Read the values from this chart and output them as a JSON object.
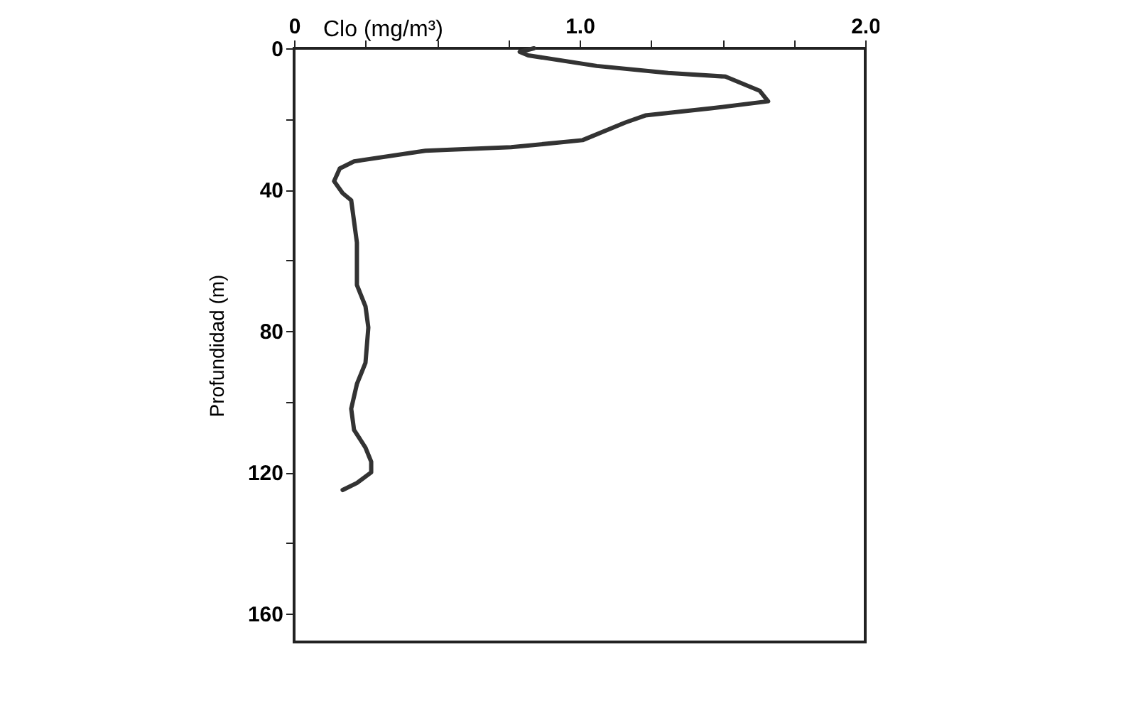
{
  "chart_data": {
    "type": "line",
    "xlabel": "Clo (mg/m³)",
    "ylabel": "Profundidad (m)",
    "x": [
      0.84,
      0.79,
      0.82,
      1.06,
      1.31,
      1.51,
      1.63,
      1.66,
      1.46,
      1.23,
      1.16,
      1.01,
      0.76,
      0.46,
      0.21,
      0.16,
      0.14,
      0.17,
      0.2,
      0.22,
      0.22,
      0.25,
      0.26,
      0.25,
      0.22,
      0.2,
      0.21,
      0.25,
      0.27,
      0.27,
      0.22,
      0.17
    ],
    "series": [
      {
        "color": "#333333",
        "values": [
          0,
          1,
          2,
          5,
          7,
          8,
          12,
          15,
          17,
          19,
          21,
          26,
          28,
          29,
          32,
          34,
          37.6,
          41,
          43,
          55,
          67,
          73,
          79,
          89,
          95,
          102,
          108,
          113,
          117,
          120,
          123,
          125
        ]
      }
    ],
    "xlim": [
      0,
      2.0
    ],
    "ylim": [
      168,
      0
    ],
    "xticks": [
      0,
      {
        "value": 0.25,
        "label": null
      },
      {
        "value": 0.5,
        "label": null
      },
      {
        "value": 0.75,
        "label": null
      },
      {
        "value": 1.0,
        "label": "1.0"
      },
      {
        "value": 1.25,
        "label": null
      },
      {
        "value": 1.5,
        "label": null
      },
      {
        "value": 1.75,
        "label": null
      },
      {
        "value": 2.0,
        "label": "2.0"
      }
    ],
    "yticks": [
      0,
      {
        "value": 20,
        "label": null
      },
      40,
      {
        "value": 60,
        "label": null
      },
      80,
      {
        "value": 100,
        "label": null
      },
      120,
      {
        "value": 140,
        "label": null
      },
      160
    ],
    "grid": false,
    "marker": "none",
    "line_style": "solid"
  }
}
